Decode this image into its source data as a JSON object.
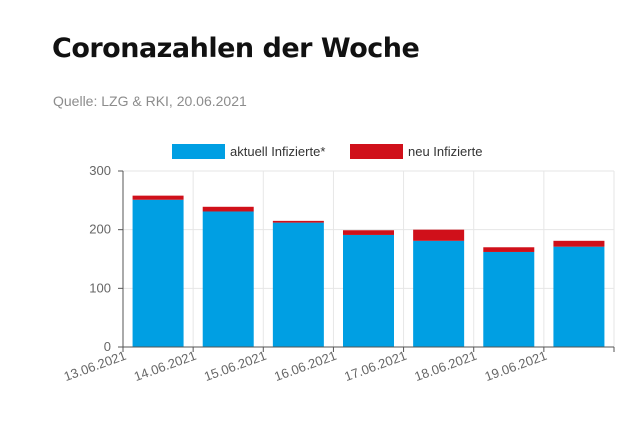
{
  "header": {
    "title": "Coronazahlen der Woche",
    "source": "Quelle: LZG & RKI, 20.06.2021"
  },
  "colors": {
    "current": "#009fe3",
    "new": "#d0101a",
    "grid": "#e6e6e6",
    "axis": "#555555",
    "tick_text": "#666666"
  },
  "chart_data": {
    "type": "bar",
    "stacked": true,
    "categories": [
      "13.06.2021",
      "14.06.2021",
      "15.06.2021",
      "16.06.2021",
      "17.06.2021",
      "18.06.2021",
      "19.06.2021"
    ],
    "series": [
      {
        "name": "aktuell Infizierte*",
        "values": [
          251,
          231,
          212,
          191,
          181,
          162,
          171
        ]
      },
      {
        "name": "neu Infizierte",
        "values": [
          7,
          8,
          3,
          8,
          19,
          8,
          10
        ]
      }
    ],
    "ylim": [
      0,
      300
    ],
    "yticks": [
      0,
      100,
      200,
      300
    ],
    "grid": true,
    "legend": "top-center",
    "xlabel": "",
    "ylabel": ""
  }
}
